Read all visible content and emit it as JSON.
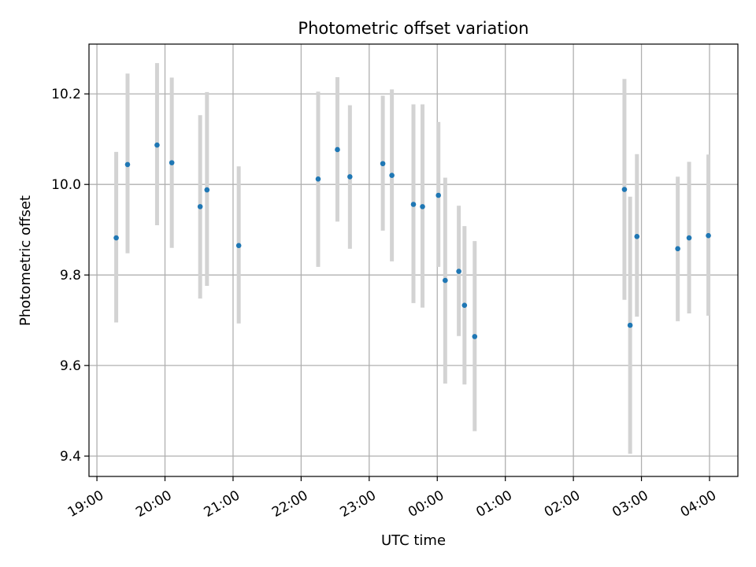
{
  "chart_data": {
    "type": "scatter",
    "title": "Photometric offset variation",
    "xlabel": "UTC time",
    "ylabel": "Photometric offset",
    "x_is_time": true,
    "xlim": [
      "18:53",
      "04:25"
    ],
    "ylim": [
      9.355,
      10.31
    ],
    "grid": true,
    "x_ticks": [
      "19:00",
      "20:00",
      "21:00",
      "22:00",
      "23:00",
      "00:00",
      "01:00",
      "02:00",
      "03:00",
      "04:00"
    ],
    "y_ticks": [
      "9.4",
      "9.6",
      "9.8",
      "10.0",
      "10.2"
    ],
    "y_tick_values": [
      9.4,
      9.6,
      9.8,
      10.0,
      10.2
    ],
    "point_color": "#1f77b4",
    "errorbar_color": "#d3d3d3",
    "points": [
      {
        "x": "19:17",
        "y": 9.882,
        "low": 9.695,
        "high": 10.072
      },
      {
        "x": "19:27",
        "y": 10.044,
        "low": 9.848,
        "high": 10.245
      },
      {
        "x": "19:53",
        "y": 10.087,
        "low": 9.91,
        "high": 10.268
      },
      {
        "x": "20:06",
        "y": 10.048,
        "low": 9.86,
        "high": 10.236
      },
      {
        "x": "20:31",
        "y": 9.951,
        "low": 9.748,
        "high": 10.153
      },
      {
        "x": "20:37",
        "y": 9.988,
        "low": 9.776,
        "high": 10.204
      },
      {
        "x": "21:05",
        "y": 9.865,
        "low": 9.693,
        "high": 10.04
      },
      {
        "x": "22:15",
        "y": 10.012,
        "low": 9.818,
        "high": 10.205
      },
      {
        "x": "22:32",
        "y": 10.077,
        "low": 9.918,
        "high": 10.237
      },
      {
        "x": "22:43",
        "y": 10.017,
        "low": 9.858,
        "high": 10.175
      },
      {
        "x": "23:12",
        "y": 10.046,
        "low": 9.898,
        "high": 10.196
      },
      {
        "x": "23:20",
        "y": 10.02,
        "low": 9.83,
        "high": 10.21
      },
      {
        "x": "23:39",
        "y": 9.956,
        "low": 9.738,
        "high": 10.177
      },
      {
        "x": "23:47",
        "y": 9.951,
        "low": 9.728,
        "high": 10.177
      },
      {
        "x": "00:01",
        "y": 9.976,
        "low": 9.818,
        "high": 10.138
      },
      {
        "x": "00:07",
        "y": 9.788,
        "low": 9.56,
        "high": 10.015
      },
      {
        "x": "00:19",
        "y": 9.808,
        "low": 9.665,
        "high": 9.953
      },
      {
        "x": "00:24",
        "y": 9.733,
        "low": 9.558,
        "high": 9.908
      },
      {
        "x": "00:33",
        "y": 9.664,
        "low": 9.455,
        "high": 9.875
      },
      {
        "x": "02:45",
        "y": 9.989,
        "low": 9.745,
        "high": 10.233
      },
      {
        "x": "02:50",
        "y": 9.689,
        "low": 9.405,
        "high": 9.973
      },
      {
        "x": "02:56",
        "y": 9.885,
        "low": 9.708,
        "high": 10.067
      },
      {
        "x": "03:32",
        "y": 9.858,
        "low": 9.698,
        "high": 10.017
      },
      {
        "x": "03:42",
        "y": 9.882,
        "low": 9.715,
        "high": 10.05
      },
      {
        "x": "03:59",
        "y": 9.887,
        "low": 9.71,
        "high": 10.066
      }
    ]
  }
}
